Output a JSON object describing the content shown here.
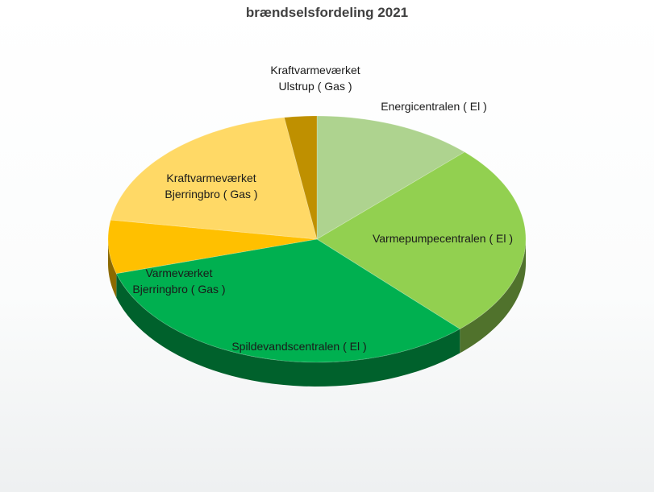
{
  "chart_data": {
    "type": "pie",
    "title": "brændselsfordeling 2021",
    "slices": [
      {
        "label_lines": [
          "Energicentralen ( El )"
        ],
        "value": 12.5,
        "color": "#aed38f"
      },
      {
        "label_lines": [
          "Varmepumpecentralen ( El )"
        ],
        "value": 25.5,
        "color": "#92d050"
      },
      {
        "label_lines": [
          "Spildevandscentralen ( El )"
        ],
        "value": 32.5,
        "color": "#00b050"
      },
      {
        "label_lines": [
          "Varmeværket",
          "Bjerringbro ( Gas )"
        ],
        "value": 7.0,
        "color": "#ffc000"
      },
      {
        "label_lines": [
          "Kraftvarmeværket",
          "Bjerringbro ( Gas )"
        ],
        "value": 20.0,
        "color": "#ffd966"
      },
      {
        "label_lines": [
          "Kraftvarmeværket",
          "Ulstrup ( Gas )"
        ],
        "value": 2.5,
        "color": "#bf9000"
      }
    ],
    "legend": "none",
    "style": "3d-tilted-pie"
  }
}
